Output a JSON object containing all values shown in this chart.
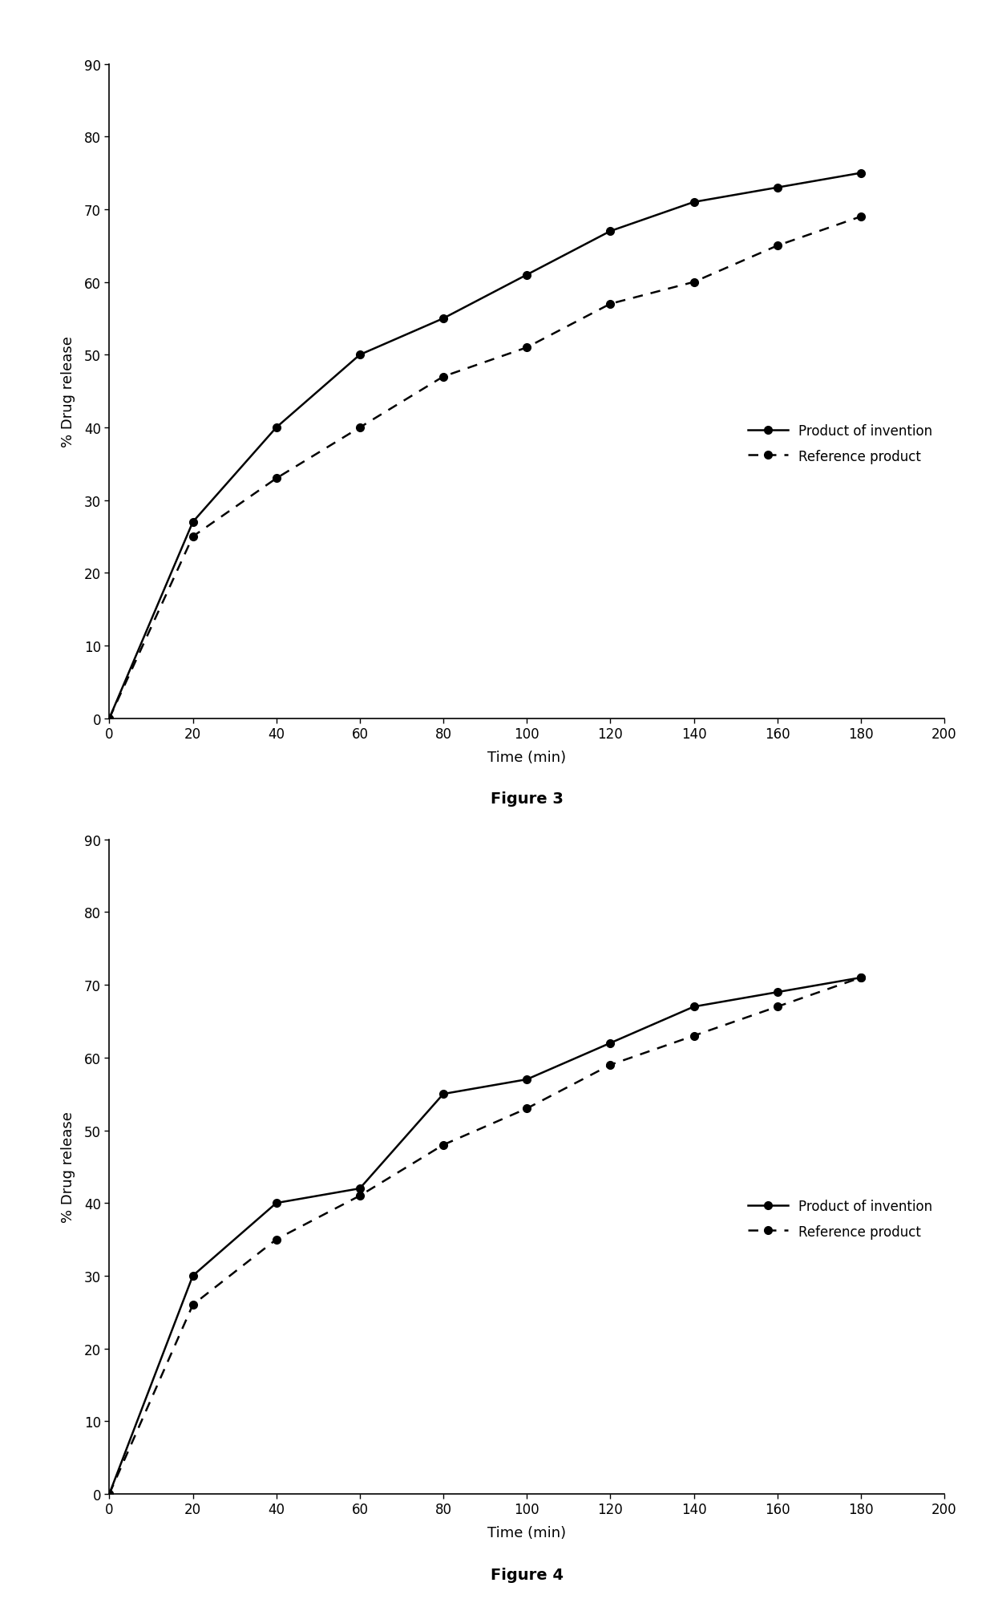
{
  "fig3": {
    "invention_x": [
      0,
      20,
      40,
      60,
      80,
      100,
      120,
      140,
      160,
      180
    ],
    "invention_y": [
      0,
      27,
      40,
      50,
      55,
      61,
      67,
      71,
      73,
      75
    ],
    "reference_x": [
      0,
      20,
      40,
      60,
      80,
      100,
      120,
      140,
      160,
      180
    ],
    "reference_y": [
      0,
      25,
      33,
      40,
      47,
      51,
      57,
      60,
      65,
      69
    ],
    "label": "Figure 3"
  },
  "fig4": {
    "invention_x": [
      0,
      20,
      40,
      60,
      80,
      100,
      120,
      140,
      160,
      180
    ],
    "invention_y": [
      0,
      30,
      40,
      42,
      55,
      57,
      62,
      67,
      69,
      71
    ],
    "reference_x": [
      0,
      20,
      40,
      60,
      80,
      100,
      120,
      140,
      160,
      180
    ],
    "reference_y": [
      0,
      26,
      35,
      41,
      48,
      53,
      59,
      63,
      67,
      71
    ],
    "label": "Figure 4"
  },
  "xlabel": "Time (min)",
  "ylabel": "% Drug release",
  "xlim": [
    0,
    200
  ],
  "ylim": [
    0,
    90
  ],
  "xticks": [
    0,
    20,
    40,
    60,
    80,
    100,
    120,
    140,
    160,
    180,
    200
  ],
  "yticks": [
    0,
    10,
    20,
    30,
    40,
    50,
    60,
    70,
    80,
    90
  ],
  "legend_invention": "Product of invention",
  "legend_reference": "Reference product",
  "line_color": "#000000",
  "marker_size": 7,
  "linewidth": 1.8,
  "label_fontsize": 13,
  "tick_fontsize": 12,
  "legend_fontsize": 12,
  "fig_label_fontsize": 14
}
